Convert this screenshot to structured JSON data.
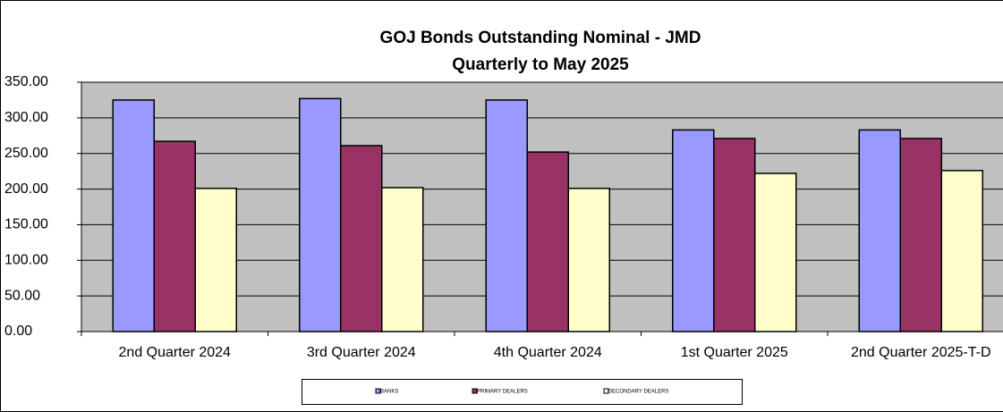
{
  "chart_data": {
    "type": "bar",
    "title": "GOJ Bonds Outstanding Nominal - JMD",
    "subtitle": "Quarterly to May 2025",
    "categories": [
      "2nd Quarter 2024",
      "3rd Quarter 2024",
      "4th Quarter 2024",
      "1st Quarter 2025",
      "2nd Quarter 2025-T-D"
    ],
    "series": [
      {
        "name": "BANKS",
        "color": "#9999ff",
        "values": [
          325,
          327,
          325,
          283,
          283
        ]
      },
      {
        "name": "PRIMARY DEALERS",
        "color": "#993366",
        "values": [
          267,
          261,
          252,
          271,
          271
        ]
      },
      {
        "name": "SECONDARY DEALERS",
        "color": "#ffffcc",
        "values": [
          201,
          202,
          201,
          222,
          226
        ]
      }
    ],
    "ylim": [
      0,
      350
    ],
    "yticks": [
      {
        "value": 0,
        "label": "0.00"
      },
      {
        "value": 50,
        "label": "50.00"
      },
      {
        "value": 100,
        "label": "100.00"
      },
      {
        "value": 150,
        "label": "150.00"
      },
      {
        "value": 200,
        "label": "200.00"
      },
      {
        "value": 250,
        "label": "250.00"
      },
      {
        "value": 300,
        "label": "300.00"
      },
      {
        "value": 350,
        "label": "350.00"
      }
    ],
    "grid": true,
    "legend": "bottom"
  }
}
